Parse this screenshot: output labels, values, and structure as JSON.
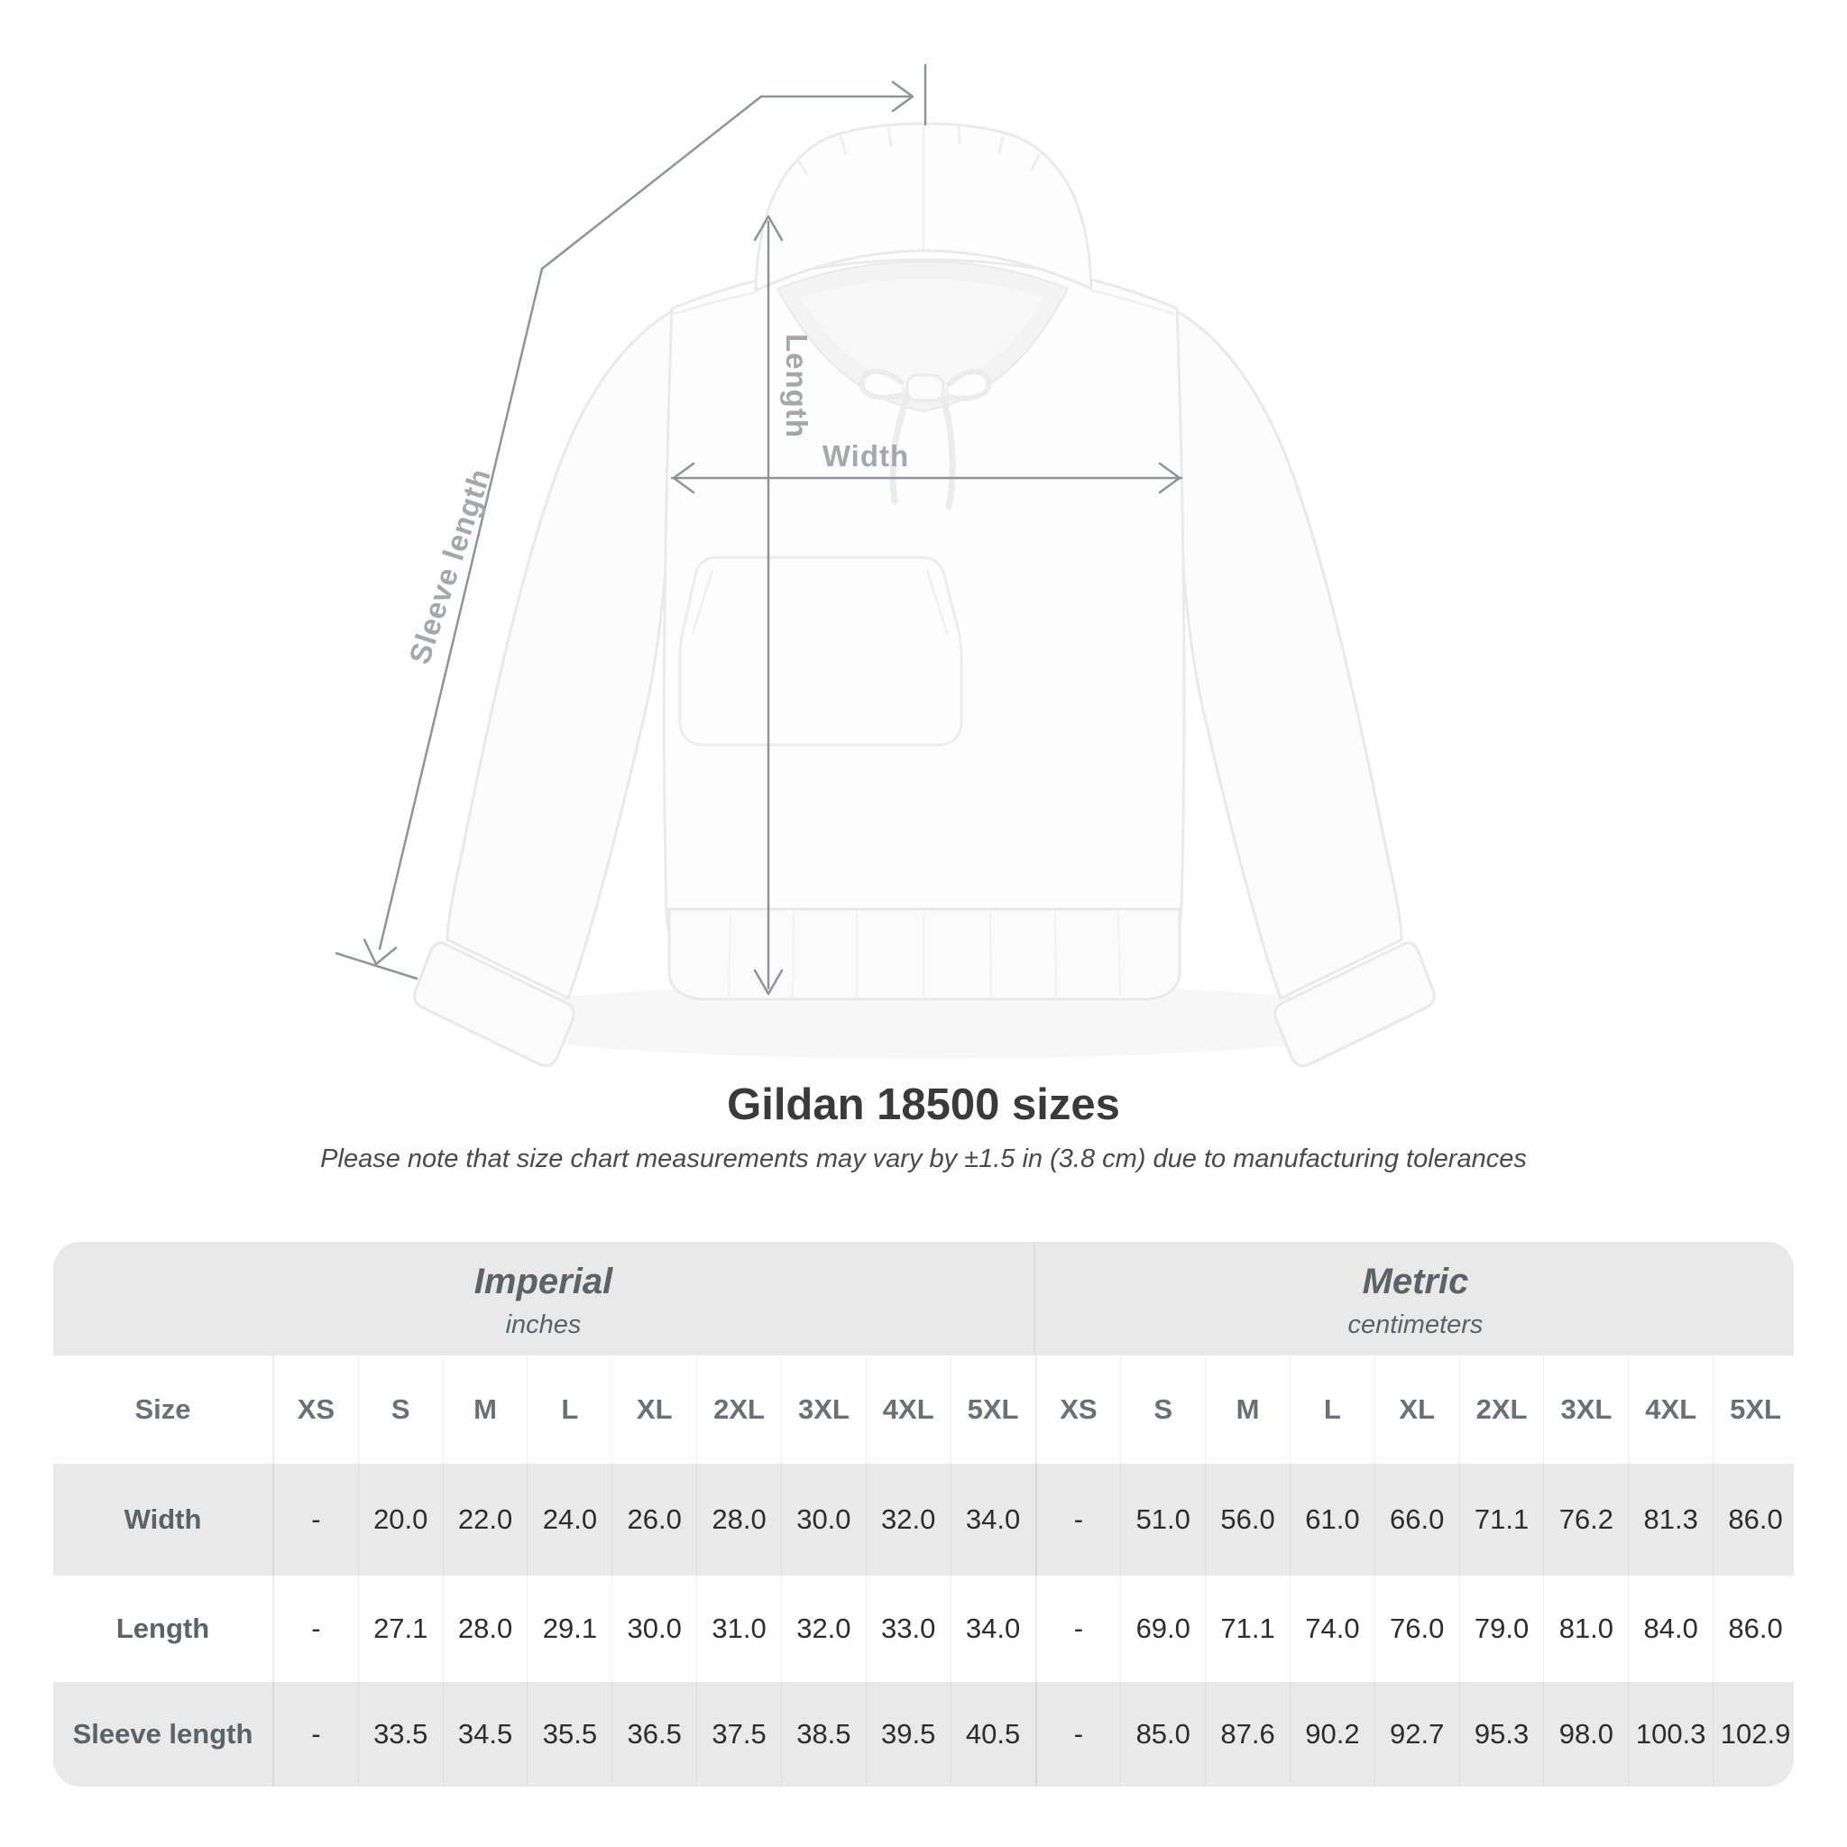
{
  "page": {
    "title": "Gildan 18500 sizes",
    "subtitle": "Please note that size chart measurements may vary by ±1.5 in (3.8 cm) due to manufacturing tolerances"
  },
  "diagram": {
    "labels": {
      "sleeve_length": "Sleeve length",
      "length": "Length",
      "width": "Width"
    },
    "colors": {
      "measure_line": "#8f9497",
      "measure_label": "#a3a8ab"
    }
  },
  "size_table": {
    "corner_header": "Size",
    "unit_groups": [
      {
        "label": "Imperial",
        "sublabel": "inches"
      },
      {
        "label": "Metric",
        "sublabel": "centimeters"
      }
    ],
    "sizes": [
      "XS",
      "S",
      "M",
      "L",
      "XL",
      "2XL",
      "3XL",
      "4XL",
      "5XL"
    ],
    "rows": [
      {
        "label": "Width",
        "imperial": [
          "-",
          "20.0",
          "22.0",
          "24.0",
          "26.0",
          "28.0",
          "30.0",
          "32.0",
          "34.0"
        ],
        "metric": [
          "-",
          "51.0",
          "56.0",
          "61.0",
          "66.0",
          "71.1",
          "76.2",
          "81.3",
          "86.0"
        ]
      },
      {
        "label": "Length",
        "imperial": [
          "-",
          "27.1",
          "28.0",
          "29.1",
          "30.0",
          "31.0",
          "32.0",
          "33.0",
          "34.0"
        ],
        "metric": [
          "-",
          "69.0",
          "71.1",
          "74.0",
          "76.0",
          "79.0",
          "81.0",
          "84.0",
          "86.0"
        ]
      },
      {
        "label": "Sleeve length",
        "imperial": [
          "-",
          "33.5",
          "34.5",
          "35.5",
          "36.5",
          "37.5",
          "38.5",
          "39.5",
          "40.5"
        ],
        "metric": [
          "-",
          "85.0",
          "87.6",
          "90.2",
          "92.7",
          "95.3",
          "98.0",
          "100.3",
          "102.9"
        ]
      }
    ],
    "colors": {
      "band_bg": "#e9e9e9",
      "alt_row_bg": "#e9e9e9",
      "header_text": "#6a7074",
      "cell_text": "#2d2d2d"
    }
  },
  "chart_data": {
    "type": "table",
    "title": "Gildan 18500 sizes",
    "note": "Please note that size chart measurements may vary by ±1.5 in (3.8 cm) due to manufacturing tolerances",
    "column_groups": [
      "Imperial (inches)",
      "Metric (centimeters)"
    ],
    "columns": [
      "Size",
      "XS",
      "S",
      "M",
      "L",
      "XL",
      "2XL",
      "3XL",
      "4XL",
      "5XL",
      "XS",
      "S",
      "M",
      "L",
      "XL",
      "2XL",
      "3XL",
      "4XL",
      "5XL"
    ],
    "rows": [
      [
        "Width",
        "-",
        "20.0",
        "22.0",
        "24.0",
        "26.0",
        "28.0",
        "30.0",
        "32.0",
        "34.0",
        "-",
        "51.0",
        "56.0",
        "61.0",
        "66.0",
        "71.1",
        "76.2",
        "81.3",
        "86.0"
      ],
      [
        "Length",
        "-",
        "27.1",
        "28.0",
        "29.1",
        "30.0",
        "31.0",
        "32.0",
        "33.0",
        "34.0",
        "-",
        "69.0",
        "71.1",
        "74.0",
        "76.0",
        "79.0",
        "81.0",
        "84.0",
        "86.0"
      ],
      [
        "Sleeve length",
        "-",
        "33.5",
        "34.5",
        "35.5",
        "36.5",
        "37.5",
        "38.5",
        "39.5",
        "40.5",
        "-",
        "85.0",
        "87.6",
        "90.2",
        "92.7",
        "95.3",
        "98.0",
        "100.3",
        "102.9"
      ]
    ]
  }
}
